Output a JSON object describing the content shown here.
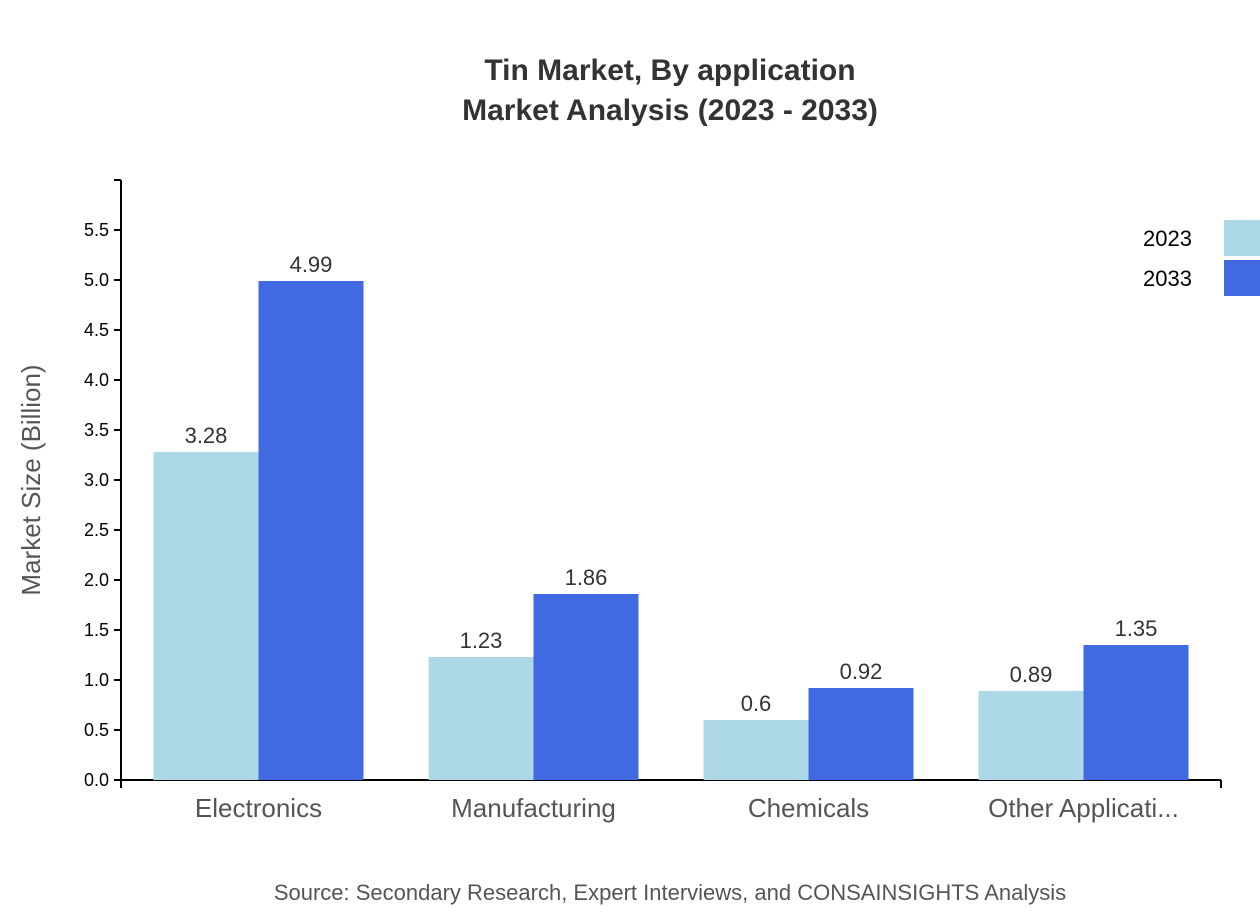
{
  "chart_data": {
    "type": "bar",
    "title": "Tin Market, By application",
    "subtitle": "Market Analysis (2023 - 2033)",
    "xlabel": "",
    "ylabel": "Market Size (Billion)",
    "categories": [
      "Electronics",
      "Manufacturing",
      "Chemicals",
      "Other Applicati..."
    ],
    "series": [
      {
        "name": "2023",
        "color": "#add8e6",
        "values": [
          3.28,
          1.23,
          0.6,
          0.89
        ]
      },
      {
        "name": "2033",
        "color": "#4169e1",
        "values": [
          4.99,
          1.86,
          0.92,
          1.35
        ]
      }
    ],
    "ylim": [
      0,
      6
    ],
    "yticks": [
      "0.0",
      "0.5",
      "1.0",
      "1.5",
      "2.0",
      "2.5",
      "3.0",
      "3.5",
      "4.0",
      "4.5",
      "5.0",
      "5.5"
    ],
    "grid": false,
    "legend": "top-right",
    "source": "Source: Secondary Research, Expert Interviews, and CONSAINSIGHTS Analysis"
  }
}
